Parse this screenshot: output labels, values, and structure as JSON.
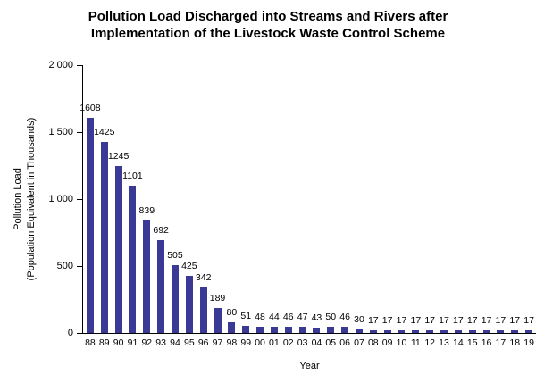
{
  "chart_data": {
    "type": "bar",
    "title": "Pollution Load Discharged into Streams and Rivers after Implementation of the Livestock Waste Control Scheme",
    "title_lines": [
      "Pollution Load Discharged into Streams and Rivers after",
      "Implementation of the Livestock Waste Control Scheme"
    ],
    "xlabel": "Year",
    "ylabel": "Pollution Load (Population Equivalent in Thousands)",
    "ylabel_lines": [
      "Pollution Load",
      "(Population Equivalent in Thousands)"
    ],
    "categories": [
      "88",
      "89",
      "90",
      "91",
      "92",
      "93",
      "94",
      "95",
      "96",
      "97",
      "98",
      "99",
      "00",
      "01",
      "02",
      "03",
      "04",
      "05",
      "06",
      "07",
      "08",
      "09",
      "10",
      "11",
      "12",
      "13",
      "14",
      "15",
      "16",
      "17",
      "18",
      "19"
    ],
    "values": [
      1608,
      1425,
      1245,
      1101,
      839,
      692,
      505,
      425,
      342,
      189,
      80,
      51,
      48,
      44,
      46,
      47,
      43,
      50,
      46,
      30,
      17,
      17,
      17,
      17,
      17,
      17,
      17,
      17,
      17,
      17,
      17,
      17
    ],
    "data_labels": true,
    "ylim": [
      0,
      2000
    ],
    "yticks": [
      {
        "value": 0,
        "label": "0"
      },
      {
        "value": 500,
        "label": "500"
      },
      {
        "value": 1000,
        "label": "1 000"
      },
      {
        "value": 1500,
        "label": "1 500"
      },
      {
        "value": 2000,
        "label": "2 000"
      }
    ],
    "bar_color": "#3A3A96",
    "axis_color": "#000000",
    "text_color": "#000000",
    "background_color": "#FFFFFF",
    "grid": false,
    "legend": "none"
  }
}
